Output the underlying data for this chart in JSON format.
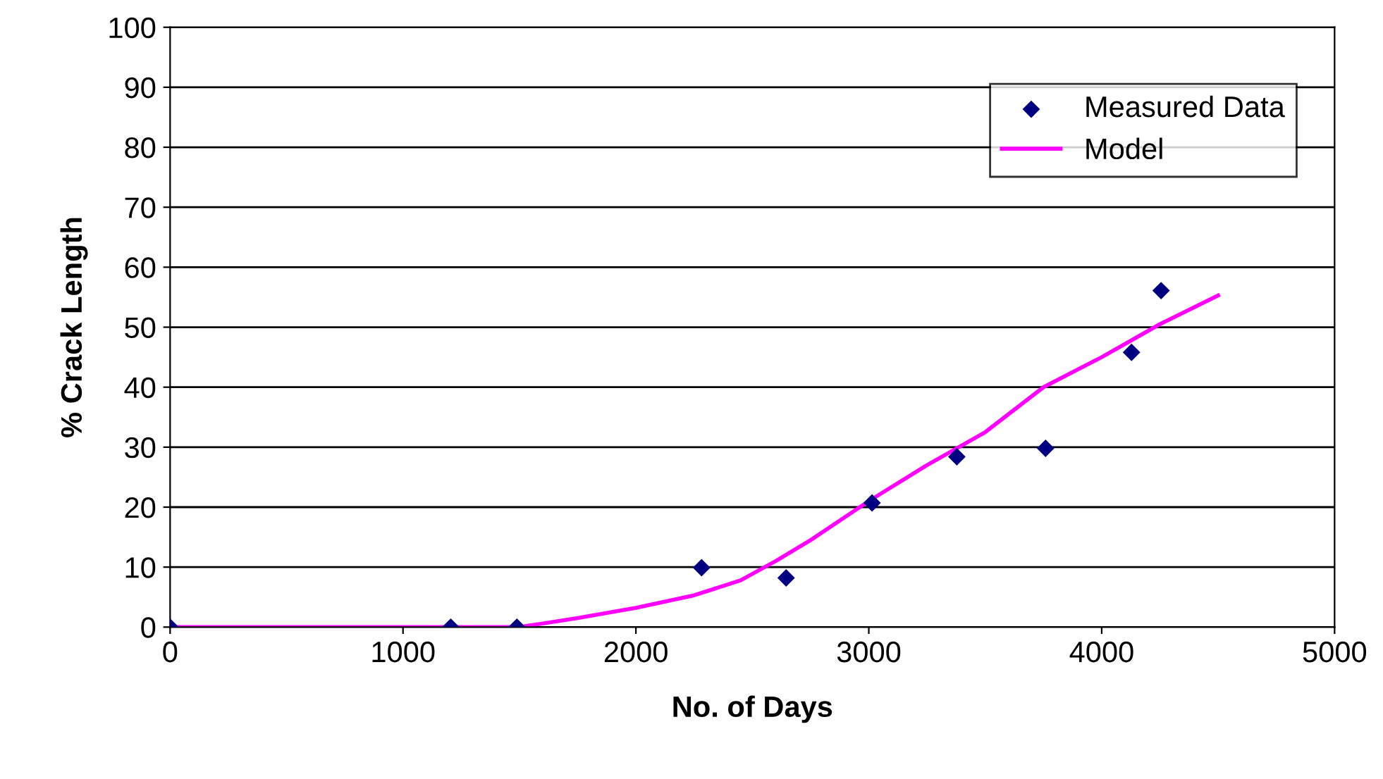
{
  "chart_data": {
    "type": "scatter",
    "xlabel": "No. of Days",
    "ylabel": "% Crack Length",
    "xlim": [
      0,
      5000
    ],
    "ylim": [
      0,
      100
    ],
    "xticks": [
      0,
      1000,
      2000,
      3000,
      4000,
      5000
    ],
    "yticks": [
      0,
      10,
      20,
      30,
      40,
      50,
      60,
      70,
      80,
      90,
      100
    ],
    "grid": "y",
    "legend": "top right",
    "series": [
      {
        "name": "Measured Data",
        "marker": "diamond",
        "color": "#000080",
        "x": [
          0,
          1205,
          1489,
          2282,
          2645,
          3014,
          3378,
          3759,
          4128,
          4255
        ],
        "values": [
          0,
          0,
          0,
          9.9,
          8.2,
          20.7,
          28.4,
          29.8,
          45.8,
          56.1
        ]
      },
      {
        "name": "Model",
        "type": "line",
        "marker": "none",
        "line_style": "solid",
        "color": "#ff00ff",
        "x": [
          0,
          500,
          1000,
          1500,
          1750,
          2000,
          2250,
          2450,
          2600,
          2750,
          3000,
          3250,
          3500,
          3750,
          4000,
          4250,
          4500
        ],
        "values": [
          0,
          0,
          0,
          0,
          1.5,
          3.2,
          5.3,
          7.8,
          11,
          14.5,
          21,
          27,
          32.5,
          40,
          45,
          50.5,
          55.3
        ]
      }
    ]
  }
}
